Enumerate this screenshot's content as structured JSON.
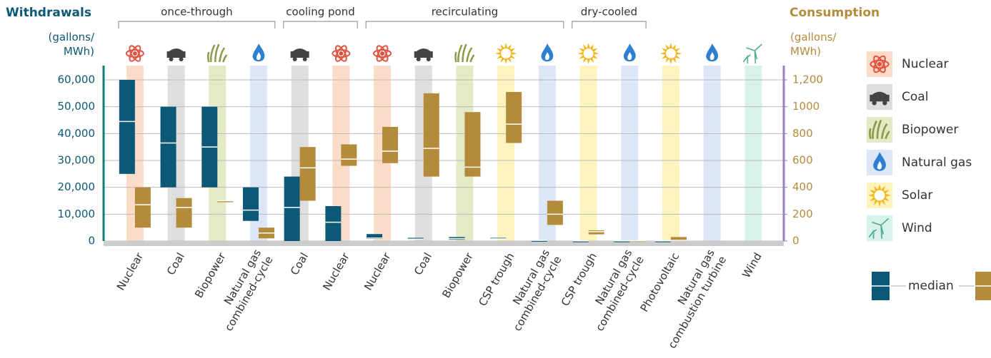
{
  "chart_data": {
    "type": "range",
    "title": "Withdrawals",
    "y_unit": "(gallons/ MWh)",
    "y2_title": "Consumption",
    "y2_unit": "(gallons/ MWh)",
    "categories": [
      "Nuclear",
      "Coal",
      "Biopower",
      "Natural gas combined-cycle",
      "Coal",
      "Nuclear",
      "Nuclear",
      "Coal",
      "Biopower",
      "CSP trough",
      "Natural gas combined-cycle",
      "CSP trough",
      "Natural gas combined-cycle",
      "Photovoltaic",
      "Natural gas combustion turbine",
      "Wind"
    ],
    "category_fuel": [
      "Nuclear",
      "Coal",
      "Biopower",
      "Natural gas",
      "Coal",
      "Nuclear",
      "Nuclear",
      "Coal",
      "Biopower",
      "Solar",
      "Natural gas",
      "Solar",
      "Natural gas",
      "Solar",
      "Natural gas",
      "Wind"
    ],
    "groups": [
      {
        "name": "once-through",
        "count": 4
      },
      {
        "name": "cooling pond",
        "count": 2
      },
      {
        "name": "recirculating",
        "count": 5
      },
      {
        "name": "dry-cooled",
        "count": 2
      }
    ],
    "fuels": [
      {
        "name": "Nuclear",
        "color": "#e0533f",
        "shade": "#fbdcc8"
      },
      {
        "name": "Coal",
        "color": "#444444",
        "shade": "#dedede"
      },
      {
        "name": "Biopower",
        "color": "#8a9a4a",
        "shade": "#e4e9c6"
      },
      {
        "name": "Natural gas",
        "color": "#2f7fd0",
        "shade": "#dde6f6"
      },
      {
        "name": "Solar",
        "color": "#f2b81e",
        "shade": "#fdf3bd"
      },
      {
        "name": "Wind",
        "color": "#4fae92",
        "shade": "#d8f1eb"
      }
    ],
    "series": [
      {
        "name": "Withdrawals",
        "color": "#0b5877",
        "min": [
          25000,
          20000,
          20000,
          7500,
          0,
          0,
          800,
          500,
          500,
          700,
          100,
          0,
          0,
          0,
          null,
          null
        ],
        "max": [
          60000,
          50000,
          50000,
          20000,
          24000,
          13000,
          2600,
          1200,
          1500,
          1200,
          300,
          100,
          100,
          100,
          null,
          null
        ],
        "median": [
          44500,
          36500,
          35000,
          11500,
          12500,
          7000,
          1100,
          700,
          900,
          800,
          250,
          50,
          50,
          50,
          null,
          null
        ]
      },
      {
        "name": "Consumption",
        "color": "#b38b3b",
        "axis": "y2",
        "min": [
          100,
          100,
          300,
          20,
          300,
          560,
          580,
          480,
          480,
          730,
          120,
          50,
          0,
          0,
          null,
          null
        ],
        "max": [
          400,
          320,
          300,
          100,
          700,
          720,
          850,
          1100,
          960,
          1110,
          300,
          80,
          5,
          30,
          null,
          null
        ],
        "median": [
          270,
          250,
          300,
          60,
          545,
          610,
          670,
          690,
          550,
          870,
          200,
          70,
          2,
          5,
          null,
          null
        ]
      }
    ],
    "legend_median": "median",
    "ylim": [
      0,
      60000
    ],
    "yticks": [
      0,
      {
        "value": 10000,
        "label": "10,000"
      },
      {
        "value": 20000,
        "label": "20,000"
      },
      {
        "value": 30000,
        "label": "30,000"
      },
      {
        "value": 40000,
        "label": "40,000"
      },
      {
        "value": 50000,
        "label": "50,000"
      },
      {
        "value": 60000,
        "label": "60,000"
      }
    ],
    "y2lim": [
      0,
      1200
    ],
    "y2ticks": [
      0,
      200,
      400,
      600,
      800,
      1000,
      {
        "value": 1200,
        "label": "1,200"
      }
    ],
    "grid": true
  }
}
